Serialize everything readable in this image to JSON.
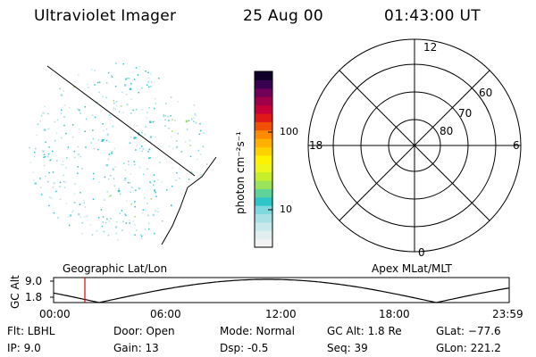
{
  "header": {
    "instrument": "Ultraviolet Imager",
    "date": "25 Aug 00",
    "time": "01:43:00 UT"
  },
  "colorbar": {
    "unit_label": "photon cm⁻²s⁻¹",
    "ticks": [
      "100",
      "10"
    ],
    "colors": [
      "#f2f2f2",
      "#e1eef0",
      "#c9e8ec",
      "#a9e0e6",
      "#7fd8dd",
      "#2ec6c8",
      "#5fd39a",
      "#9be35a",
      "#c6ee2a",
      "#eef51a",
      "#fff200",
      "#ffd000",
      "#ffb000",
      "#ff8a00",
      "#f05000",
      "#e01818",
      "#c8003a",
      "#a0004a",
      "#700058",
      "#3a0050",
      "#10002a"
    ]
  },
  "polar_plot": {
    "labels": {
      "top": "12",
      "bottom": "0",
      "left": "18",
      "right": "6"
    },
    "lat_labels": [
      "60",
      "70",
      "80"
    ]
  },
  "map_labels": {
    "left": "Geographic Lat/Lon",
    "right": "Apex MLat/MLT"
  },
  "altitude_plot": {
    "ylabel": "GC Alt",
    "yticks": [
      "9.0",
      "1.8"
    ],
    "xticks": [
      "00:00",
      "06:00",
      "12:00",
      "18:00",
      "23:59"
    ],
    "current_time_marker": "01:43"
  },
  "info": {
    "filter": "Flt: LBHL",
    "ip": "IP:  9.0",
    "door": "Door: Open",
    "gain": "Gain: 13",
    "mode": "Mode: Normal",
    "dsp": "Dsp:    -0.5",
    "gc_alt": "GC Alt: 1.8 Re",
    "seq": "Seq: 39",
    "glat": "GLat: −77.6",
    "glon": "GLon: 221.2"
  }
}
